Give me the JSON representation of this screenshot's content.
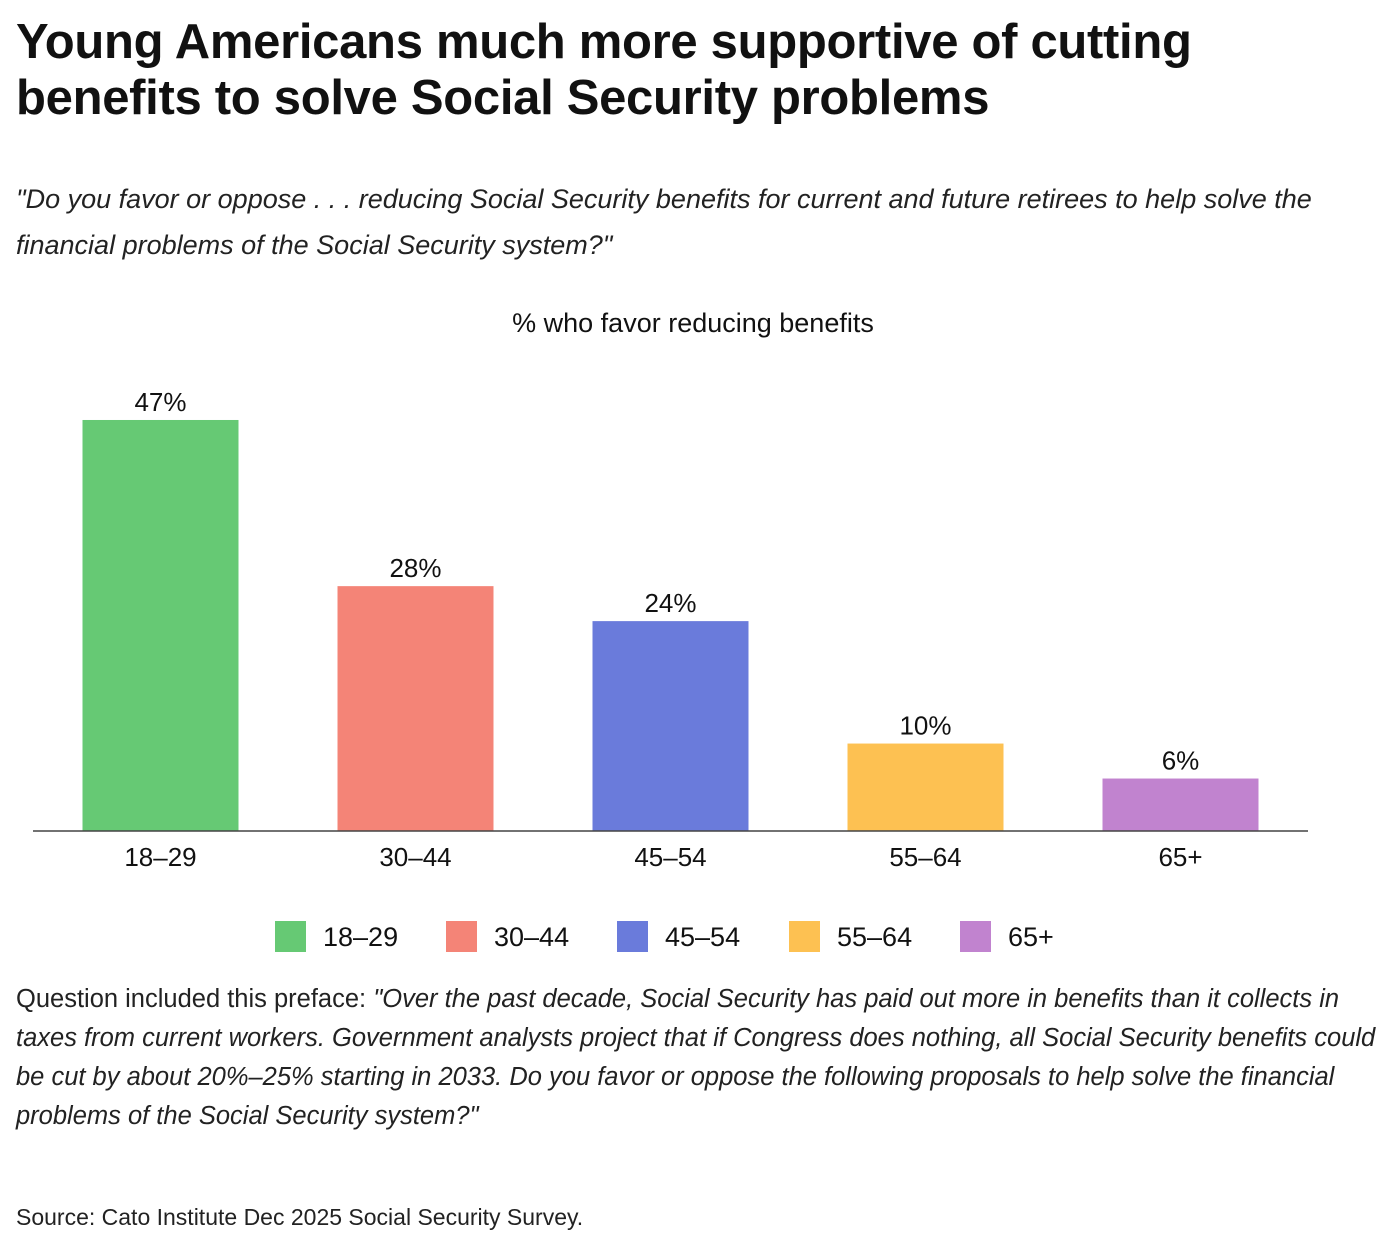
{
  "chart_data": {
    "type": "bar",
    "title": "Young Americans much more supportive of cutting benefits to solve Social Security problems",
    "subtitle": "\"Do you favor or oppose . . . reducing Social Security benefits for current and future retirees to help solve the financial problems of the Social Security system?\"",
    "ylabel": "% who favor reducing benefits",
    "xlabel": "",
    "categories": [
      "18–29",
      "30–44",
      "45–54",
      "55–64",
      "65+"
    ],
    "values": [
      47,
      28,
      24,
      10,
      6
    ],
    "data_labels": [
      "47%",
      "28%",
      "24%",
      "10%",
      "6%"
    ],
    "colors": [
      "#66c974",
      "#f48477",
      "#6a7bdb",
      "#fdc152",
      "#c183cf"
    ],
    "ylim": [
      0,
      50
    ],
    "grid": false,
    "legend": {
      "placement": "bottom",
      "entries": [
        "18–29",
        "30–44",
        "45–54",
        "55–64",
        "65+"
      ]
    }
  },
  "note": {
    "lead": "Question included this preface: ",
    "quote": "\"Over the past decade, Social Security has paid out more in benefits than it collects in taxes from current workers. Government analysts project that if Congress does nothing, all Social Security benefits could be cut by about 20%–25% starting in 2033. Do you favor or oppose the following proposals to help solve the financial problems of the Social Security system?\""
  },
  "source": "Source: Cato Institute Dec 2025 Social Security Survey."
}
